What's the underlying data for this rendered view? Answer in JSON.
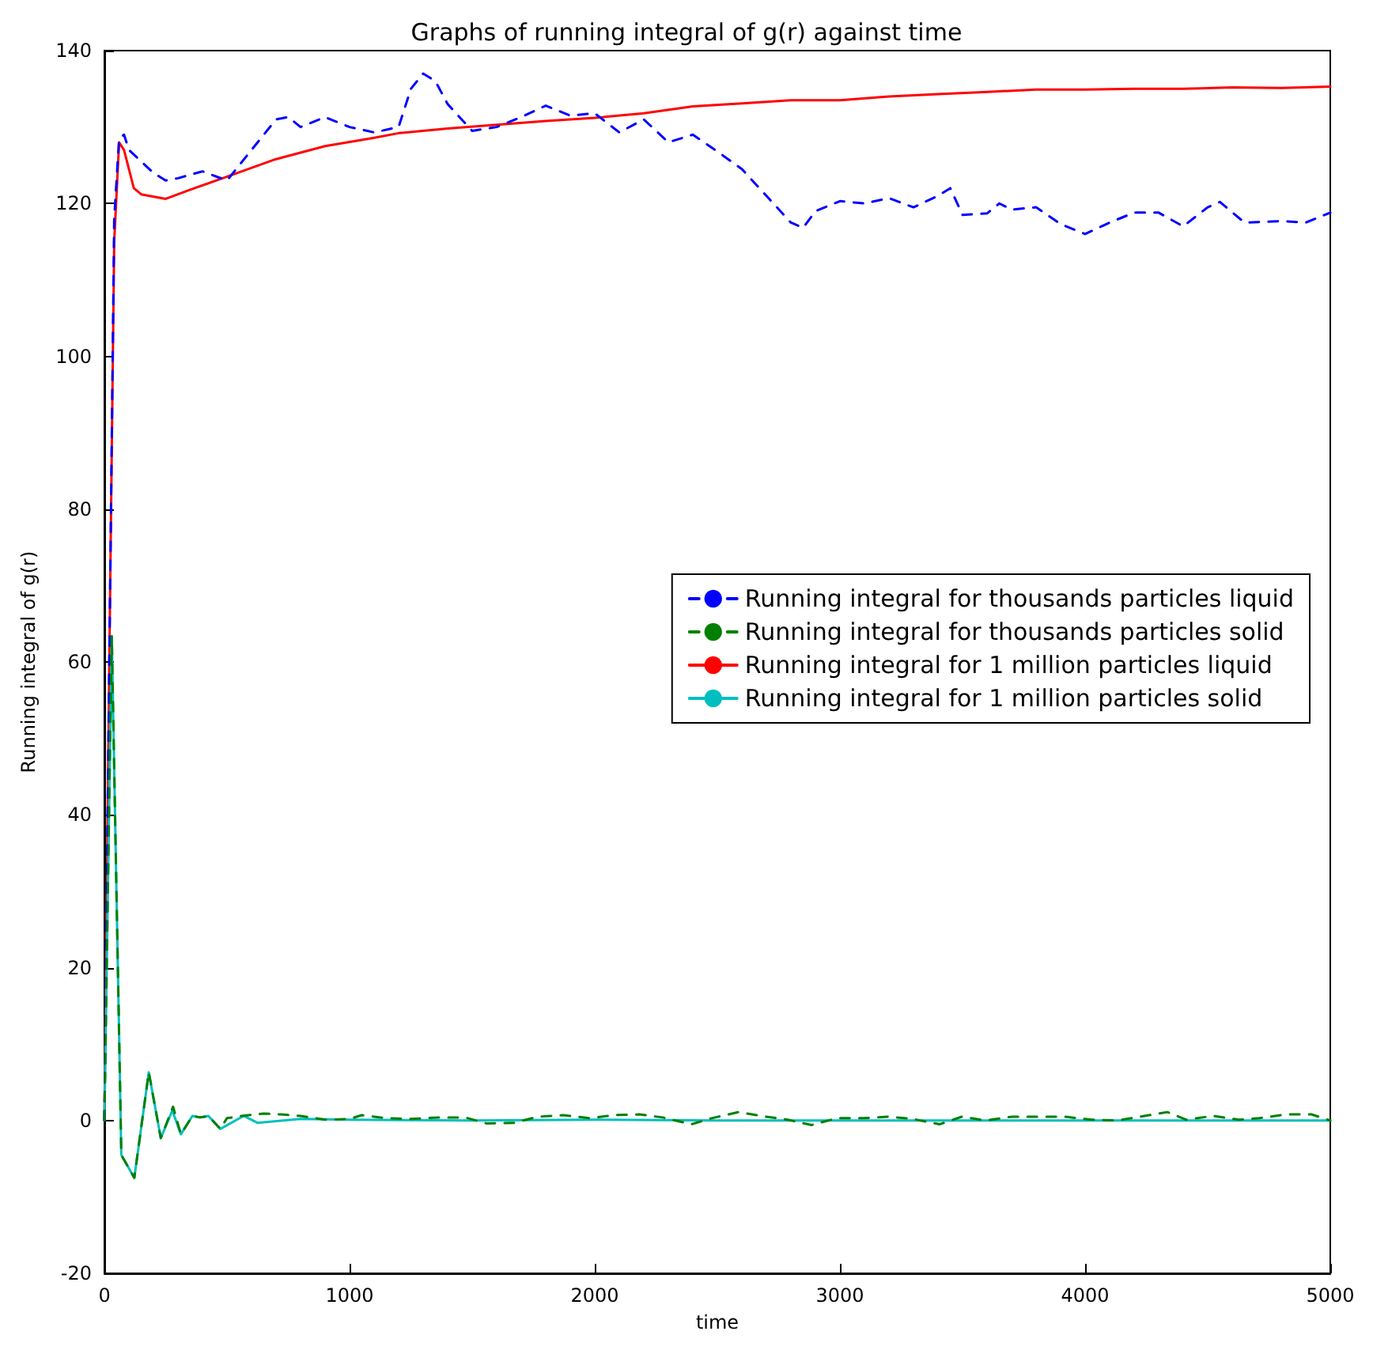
{
  "chart_data": {
    "type": "line",
    "title": "Graphs of running integral of g(r) against time",
    "xlabel": "time",
    "ylabel": "Running integral of g(r)",
    "xlim": [
      0,
      5000
    ],
    "xticks": [
      0,
      1000,
      2000,
      3000,
      4000,
      5000
    ],
    "ylim": [
      -20,
      140
    ],
    "yticks": [
      -20,
      0,
      20,
      40,
      60,
      80,
      100,
      120,
      140
    ],
    "grid": false,
    "legend": "right",
    "marker": "none",
    "series": [
      {
        "name": "Running integral for thousands particles liquid",
        "color": "#0000ff",
        "line_style": "dashed",
        "x": [
          0,
          20,
          40,
          60,
          80,
          100,
          150,
          200,
          250,
          300,
          400,
          500,
          600,
          700,
          750,
          800,
          900,
          1000,
          1100,
          1200,
          1250,
          1300,
          1350,
          1400,
          1500,
          1600,
          1700,
          1800,
          1900,
          2000,
          2100,
          2200,
          2300,
          2400,
          2500,
          2600,
          2700,
          2800,
          2850,
          2900,
          3000,
          3100,
          3200,
          3300,
          3400,
          3450,
          3500,
          3600,
          3650,
          3700,
          3800,
          3900,
          4000,
          4100,
          4200,
          4300,
          4400,
          4500,
          4550,
          4650,
          4800,
          4900,
          5000
        ],
        "values": [
          0,
          60,
          118,
          128.5,
          129,
          127,
          125.5,
          124,
          123,
          123.3,
          124.2,
          123,
          127,
          131,
          131.3,
          130,
          131.3,
          130,
          129.3,
          130,
          135,
          137,
          136,
          133,
          129.5,
          130,
          131.3,
          132.8,
          131.5,
          131.8,
          129.3,
          131,
          128,
          129,
          126.8,
          124.5,
          121,
          117.5,
          116.8,
          119,
          120.3,
          120,
          120.7,
          119.5,
          121,
          122,
          118.5,
          118.7,
          120,
          119.2,
          119.5,
          117.3,
          116,
          117.5,
          118.8,
          118.8,
          117,
          119.5,
          120.2,
          117.5,
          117.7,
          117.5,
          118.8
        ]
      },
      {
        "name": "Running integral for thousands particles solid",
        "color": "#008000",
        "line_style": "dashed",
        "x": [
          0,
          30,
          69,
          122,
          181,
          230,
          280,
          312,
          359,
          390,
          424,
          473,
          500,
          560,
          650,
          720,
          800,
          900,
          1000,
          1050,
          1150,
          1250,
          1361,
          1471,
          1561,
          1671,
          1768,
          1871,
          1981,
          2077,
          2181,
          2277,
          2394,
          2477,
          2587,
          2677,
          2787,
          2884,
          2987,
          3097,
          3200,
          3297,
          3406,
          3497,
          3594,
          3703,
          3819,
          3916,
          4026,
          4129,
          4226,
          4335,
          4413,
          4523,
          4626,
          4710,
          4819,
          4923,
          5000
        ],
        "values": [
          0,
          63.4,
          -4.5,
          -7.5,
          6.3,
          -2.3,
          1.8,
          -1.8,
          0.6,
          0.4,
          0.6,
          -1.1,
          0.3,
          0.6,
          0.9,
          0.8,
          0.6,
          0.1,
          0.2,
          0.7,
          0.3,
          0.2,
          0.4,
          0.4,
          -0.4,
          -0.3,
          0.5,
          0.7,
          0.3,
          0.7,
          0.8,
          0.4,
          -0.5,
          0.3,
          1.1,
          0.6,
          0.1,
          -0.6,
          0.3,
          0.3,
          0.5,
          0.2,
          -0.5,
          0.5,
          0,
          0.5,
          0.5,
          0.5,
          0.1,
          0,
          0.5,
          1.1,
          0.1,
          0.6,
          0.1,
          0.3,
          0.8,
          0.8,
          0
        ]
      },
      {
        "name": "Running integral for 1 million particles liquid",
        "color": "#ff0000",
        "line_style": "solid",
        "x": [
          0,
          20,
          40,
          60,
          80,
          120,
          150,
          250,
          350,
          500,
          700,
          900,
          1100,
          1200,
          1400,
          1600,
          1800,
          2000,
          2200,
          2400,
          2600,
          2800,
          3000,
          3200,
          3400,
          3600,
          3800,
          4000,
          4200,
          4400,
          4600,
          4800,
          5000
        ],
        "values": [
          0,
          60,
          115,
          128,
          127,
          122,
          121.2,
          120.6,
          121.8,
          123.5,
          125.8,
          127.5,
          128.6,
          129.2,
          129.8,
          130.3,
          130.8,
          131.2,
          131.8,
          132.7,
          133.1,
          133.5,
          133.5,
          134,
          134.3,
          134.6,
          134.9,
          134.9,
          135,
          135,
          135.2,
          135.1,
          135.3
        ]
      },
      {
        "name": "Running integral for 1 million particles solid",
        "color": "#00bfbf",
        "line_style": "solid",
        "x": [
          0,
          30,
          69,
          122,
          181,
          230,
          277,
          312,
          359,
          390,
          424,
          473,
          568,
          624,
          800,
          1000,
          1500,
          2000,
          2500,
          3000,
          3500,
          4000,
          4500,
          5000
        ],
        "values": [
          0,
          63.4,
          -4.5,
          -7.5,
          6.3,
          -2.3,
          1.3,
          -1.8,
          0.6,
          0.4,
          0.6,
          -1.1,
          0.6,
          -0.3,
          0.2,
          0.1,
          0,
          0.1,
          0,
          0,
          0,
          0,
          0,
          0
        ]
      }
    ]
  }
}
